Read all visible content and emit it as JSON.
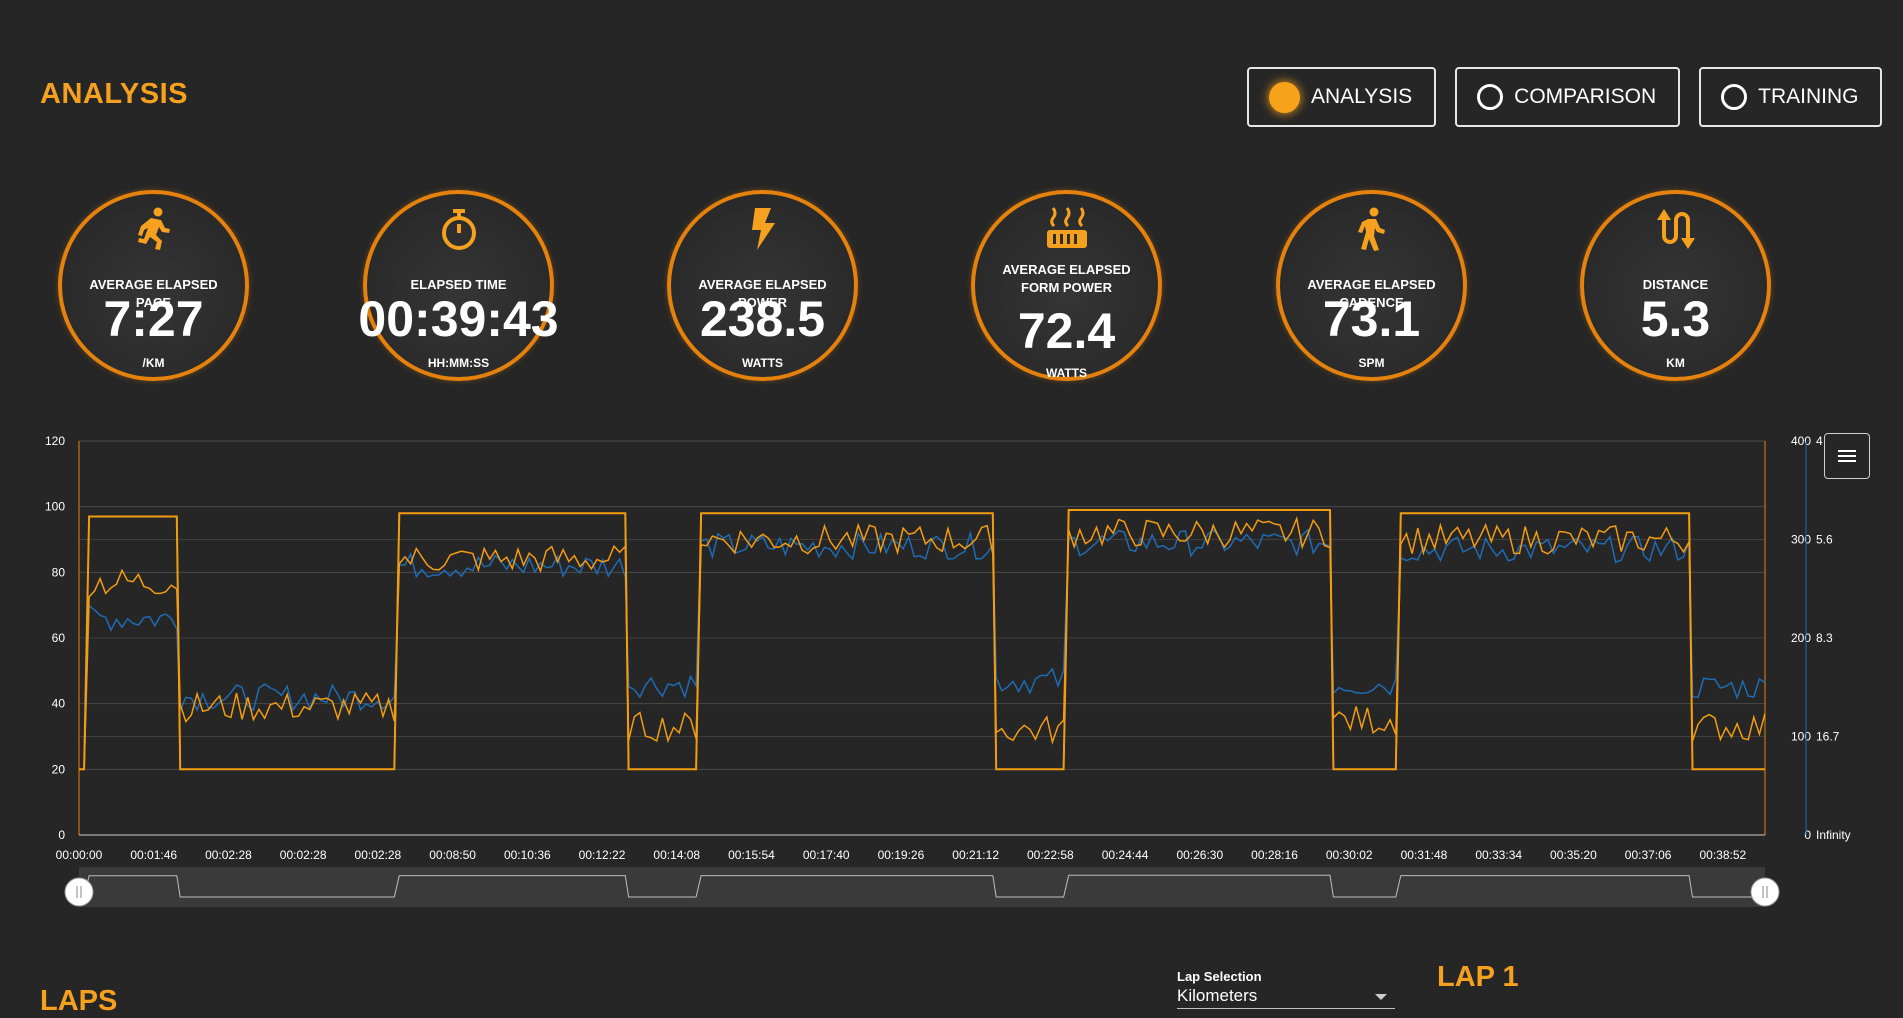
{
  "header": {
    "title": "ANALYSIS"
  },
  "modes": [
    {
      "label": "ANALYSIS",
      "selected": true
    },
    {
      "label": "COMPARISON",
      "selected": false
    },
    {
      "label": "TRAINING",
      "selected": false
    }
  ],
  "kpis": [
    {
      "icon": "running-icon",
      "label": "AVERAGE ELAPSED PACE",
      "value": "7:27",
      "unit": "/KM"
    },
    {
      "icon": "stopwatch-icon",
      "label": "ELAPSED TIME",
      "value": "00:39:43",
      "unit": "HH:MM:SS"
    },
    {
      "icon": "lightning-icon",
      "label": "AVERAGE ELAPSED POWER",
      "value": "238.5",
      "unit": "WATTS"
    },
    {
      "icon": "form-power-icon",
      "label": "AVERAGE ELAPSED FORM POWER",
      "value": "72.4",
      "unit": "WATTS"
    },
    {
      "icon": "walking-icon",
      "label": "AVERAGE ELAPSED CADENCE",
      "value": "73.1",
      "unit": "SPM"
    },
    {
      "icon": "distance-icon",
      "label": "DISTANCE",
      "value": "5.3",
      "unit": "KM"
    }
  ],
  "colors": {
    "accent": "#f5a01f",
    "ring": "#e5820e",
    "series_blue": "#1f6bb4",
    "series_orange": "#f39c12",
    "background": "#262626"
  },
  "chart_data": {
    "type": "line",
    "x_tick_labels": [
      "00:00:00",
      "00:01:46",
      "00:02:28",
      "00:02:28",
      "00:02:28",
      "00:08:50",
      "00:10:36",
      "00:12:22",
      "00:14:08",
      "00:15:54",
      "00:17:40",
      "00:19:26",
      "00:21:12",
      "00:22:58",
      "00:24:44",
      "00:26:30",
      "00:28:16",
      "00:30:02",
      "00:31:48",
      "00:33:34",
      "00:35:20",
      "00:37:06",
      "00:38:52"
    ],
    "y_left": {
      "ticks": [
        "0",
        "20",
        "40",
        "60",
        "80",
        "100",
        "120"
      ],
      "ylim": [
        0,
        120
      ]
    },
    "y_right_power": {
      "ticks": [
        "0",
        "100",
        "200",
        "300",
        "400"
      ],
      "ylim": [
        0,
        400
      ]
    },
    "y_right_pace": {
      "ticks": [
        "Infinity",
        "16.7",
        "8.3",
        "5.6",
        "4"
      ]
    },
    "grid": true,
    "segments": [
      {
        "x0": 0.0,
        "x1": 0.003,
        "level": 20
      },
      {
        "x0": 0.006,
        "x1": 0.058,
        "level": 97,
        "blue": 66,
        "orange": 77
      },
      {
        "x0": 0.06,
        "x1": 0.187,
        "level": 20,
        "blue": 42,
        "orange": 39
      },
      {
        "x0": 0.19,
        "x1": 0.324,
        "level": 98,
        "blue": 82,
        "orange": 84
      },
      {
        "x0": 0.326,
        "x1": 0.366,
        "level": 20,
        "blue": 46,
        "orange": 33
      },
      {
        "x0": 0.369,
        "x1": 0.542,
        "level": 98,
        "blue": 88,
        "orange": 90
      },
      {
        "x0": 0.544,
        "x1": 0.584,
        "level": 20,
        "blue": 47,
        "orange": 32
      },
      {
        "x0": 0.587,
        "x1": 0.742,
        "level": 99,
        "blue": 89,
        "orange": 92
      },
      {
        "x0": 0.744,
        "x1": 0.781,
        "level": 20,
        "blue": 46,
        "orange": 35
      },
      {
        "x0": 0.784,
        "x1": 0.955,
        "level": 98,
        "blue": 87,
        "orange": 90
      },
      {
        "x0": 0.957,
        "x1": 1.0,
        "level": 20,
        "blue": 45,
        "orange": 33
      }
    ]
  },
  "laps": {
    "title": "LAPS",
    "selection_label": "Lap Selection",
    "selection_value": "Kilometers",
    "lap_title": "LAP 1"
  }
}
